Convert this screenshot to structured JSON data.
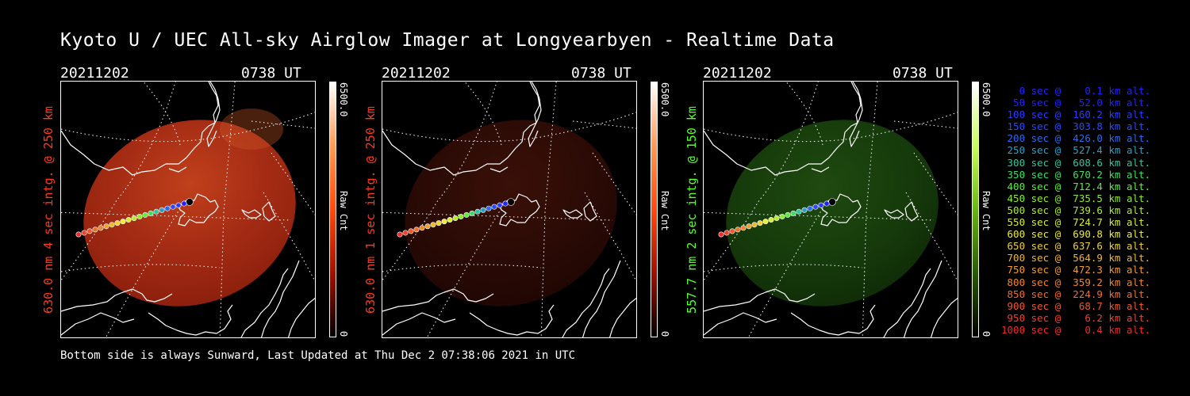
{
  "title": "Kyoto U / UEC All-sky Airglow Imager at Longyearbyen - Realtime Data",
  "panels": [
    {
      "date": "20211202",
      "time": "0738 UT",
      "ylabel": "630.0 nm 4 sec intg. @ 250 km",
      "label_color": "#ff3a1a",
      "cbar_max": "6500.0",
      "cbar_min": "0",
      "cbar_unit": "Raw Cnt"
    },
    {
      "date": "20211202",
      "time": "0738 UT",
      "ylabel": "630.0 nm 1 sec intg. @ 250 km",
      "label_color": "#ff3a1a",
      "cbar_max": "6500.0",
      "cbar_min": "0",
      "cbar_unit": "Raw Cnt"
    },
    {
      "date": "20211202",
      "time": "0738 UT",
      "ylabel": "557.7 nm 2 sec intg. @ 150 km",
      "label_color": "#5aff2a",
      "cbar_max": "6500.0",
      "cbar_min": "0",
      "cbar_unit": "Raw Cnt"
    }
  ],
  "footer": "Bottom side is always Sunward, Last Updated at Thu Dec  2 07:38:06 2021 in UTC",
  "legend": [
    {
      "text": "   0 sec @    0.1 km alt.",
      "color": "#2222ff"
    },
    {
      "text": "  50 sec @   52.0 km alt.",
      "color": "#2222ff"
    },
    {
      "text": " 100 sec @  160.2 km alt.",
      "color": "#2a3aff"
    },
    {
      "text": " 150 sec @  303.8 km alt.",
      "color": "#2a4aff"
    },
    {
      "text": " 200 sec @  426.0 km alt.",
      "color": "#2a6aee"
    },
    {
      "text": " 250 sec @  527.4 km alt.",
      "color": "#2aa0c8"
    },
    {
      "text": " 300 sec @  608.6 km alt.",
      "color": "#2ac8a0"
    },
    {
      "text": " 350 sec @  670.2 km alt.",
      "color": "#3ae060"
    },
    {
      "text": " 400 sec @  712.4 km alt.",
      "color": "#5aee3a"
    },
    {
      "text": " 450 sec @  735.5 km alt.",
      "color": "#8aee2a"
    },
    {
      "text": " 500 sec @  739.6 km alt.",
      "color": "#b0ee2a"
    },
    {
      "text": " 550 sec @  724.7 km alt.",
      "color": "#d8ee2a"
    },
    {
      "text": " 600 sec @  690.8 km alt.",
      "color": "#eeee2a"
    },
    {
      "text": " 650 sec @  637.6 km alt.",
      "color": "#eed22a"
    },
    {
      "text": " 700 sec @  564.9 km alt.",
      "color": "#eeb82a"
    },
    {
      "text": " 750 sec @  472.3 km alt.",
      "color": "#ee9e2a"
    },
    {
      "text": " 800 sec @  359.2 km alt.",
      "color": "#ee862a"
    },
    {
      "text": " 850 sec @  224.9 km alt.",
      "color": "#ee6e2a"
    },
    {
      "text": " 900 sec @   68.7 km alt.",
      "color": "#ee582a"
    },
    {
      "text": " 950 sec @    6.2 km alt.",
      "color": "#ee422a"
    },
    {
      "text": "1000 sec @    0.4 km alt.",
      "color": "#ee2a2a"
    }
  ]
}
